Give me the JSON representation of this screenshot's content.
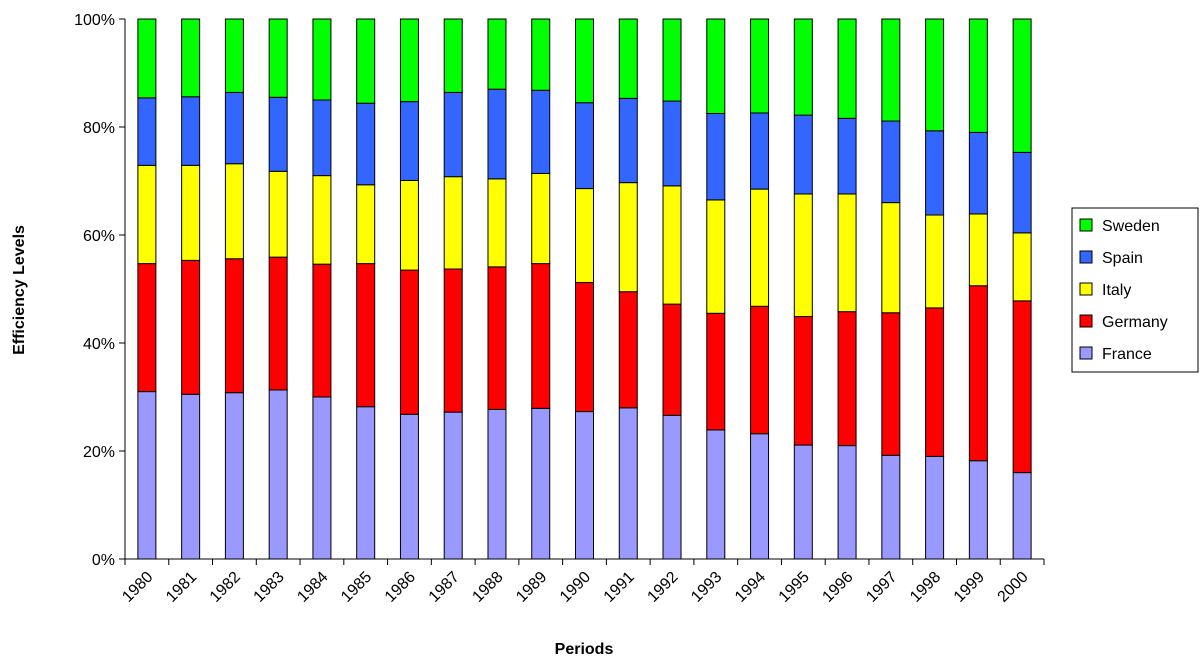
{
  "chart_data": {
    "type": "bar",
    "stacking": "percent",
    "categories": [
      "1980",
      "1981",
      "1982",
      "1983",
      "1984",
      "1985",
      "1986",
      "1987",
      "1988",
      "1989",
      "1990",
      "1991",
      "1992",
      "1993",
      "1994",
      "1995",
      "1996",
      "1997",
      "1998",
      "1999",
      "2000"
    ],
    "series": [
      {
        "name": "France",
        "color": "#9999FF",
        "values": [
          31.0,
          30.5,
          30.8,
          31.3,
          30.0,
          28.2,
          26.8,
          27.2,
          27.7,
          27.9,
          27.3,
          28.0,
          26.6,
          23.9,
          23.2,
          21.1,
          21.0,
          19.2,
          19.0,
          18.2,
          16.0
        ]
      },
      {
        "name": "Germany",
        "color": "#FF0000",
        "values": [
          23.7,
          24.8,
          24.8,
          24.6,
          24.6,
          26.5,
          26.7,
          26.5,
          26.4,
          26.8,
          23.9,
          21.5,
          20.6,
          21.6,
          23.6,
          23.8,
          24.8,
          26.4,
          27.5,
          32.4,
          31.8
        ]
      },
      {
        "name": "Italy",
        "color": "#FFFF00",
        "values": [
          18.2,
          17.6,
          17.6,
          15.9,
          16.4,
          14.6,
          16.6,
          17.1,
          16.3,
          16.7,
          17.4,
          20.2,
          21.9,
          21.0,
          21.7,
          22.7,
          21.8,
          20.4,
          17.2,
          13.3,
          12.6
        ]
      },
      {
        "name": "Spain",
        "color": "#3366FF",
        "values": [
          12.5,
          12.7,
          13.2,
          13.7,
          14.0,
          15.1,
          14.6,
          15.6,
          16.6,
          15.4,
          15.9,
          15.6,
          15.7,
          16.0,
          14.1,
          14.6,
          14.0,
          15.1,
          15.6,
          15.1,
          14.9
        ]
      },
      {
        "name": "Sweden",
        "color": "#00FF00",
        "values": [
          14.6,
          14.4,
          13.6,
          14.5,
          15.0,
          15.6,
          15.3,
          13.6,
          13.0,
          13.2,
          15.5,
          14.7,
          15.2,
          17.5,
          17.4,
          17.8,
          18.4,
          18.9,
          20.7,
          21.0,
          24.7
        ]
      }
    ],
    "xlabel": "Periods",
    "ylabel": "Efficiency Levels",
    "ylim": [
      0,
      100
    ],
    "yticks": [
      "0%",
      "20%",
      "40%",
      "60%",
      "80%",
      "100%"
    ],
    "legend_position": "right",
    "grid": false
  }
}
